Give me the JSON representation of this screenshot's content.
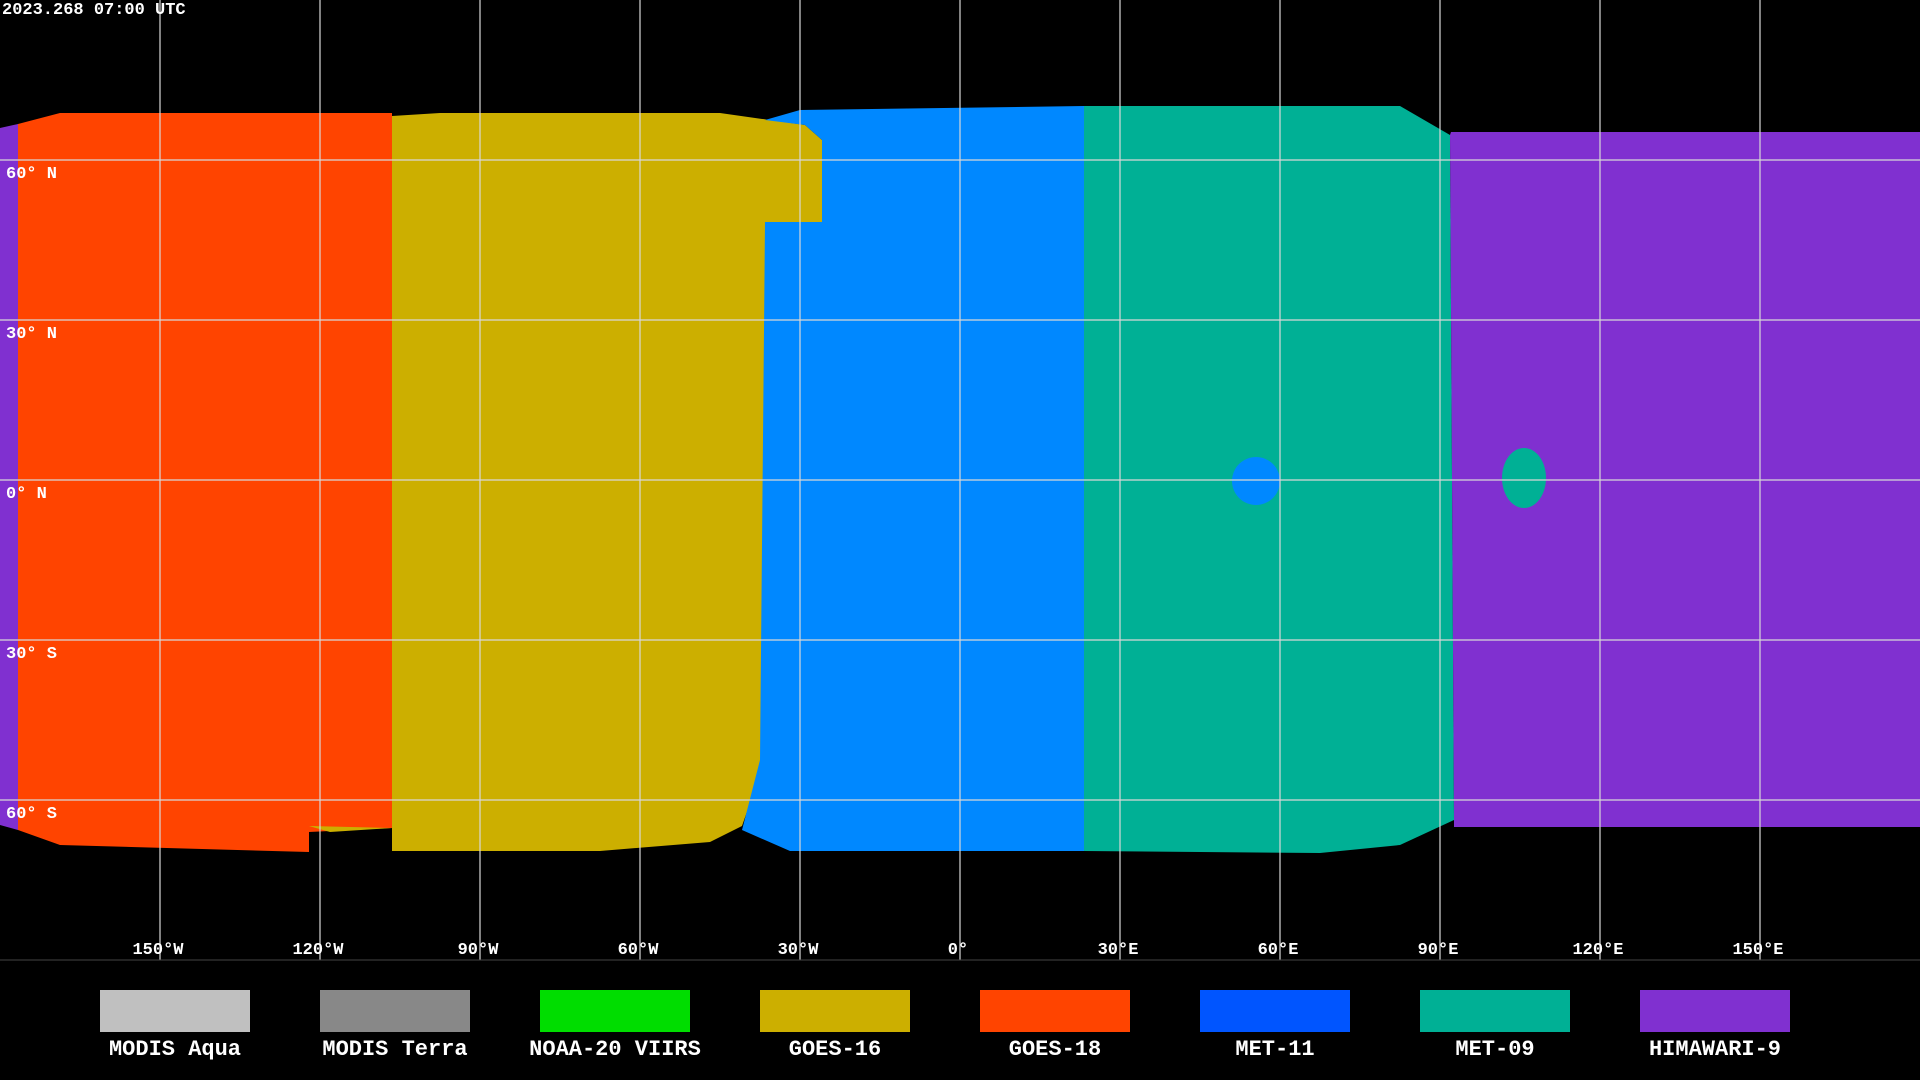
{
  "header": {
    "timestamp": "2023.268 07:00 UTC"
  },
  "map": {
    "latitude_labels": [
      "60° N",
      "30° N",
      "0° N",
      "30° S",
      "60° S"
    ],
    "longitude_labels": [
      "150°W",
      "120°W",
      "90°W",
      "60°W",
      "30°W",
      "0°",
      "30°E",
      "60°E",
      "90°E",
      "120°E",
      "150°E"
    ]
  },
  "legend": {
    "items": [
      {
        "label": "MODIS Aqua",
        "color": "#c0c0c0"
      },
      {
        "label": "MODIS Terra",
        "color": "#888888"
      },
      {
        "label": "NOAA-20 VIIRS",
        "color": "#00dd00"
      },
      {
        "label": "GOES-16",
        "color": "#ccaf00"
      },
      {
        "label": "GOES-18",
        "color": "#ff4400"
      },
      {
        "label": "MET-11",
        "color": "#0055ff"
      },
      {
        "label": "MET-09",
        "color": "#00b095"
      },
      {
        "label": "HIMAWARI-9",
        "color": "#8030d0"
      }
    ]
  }
}
